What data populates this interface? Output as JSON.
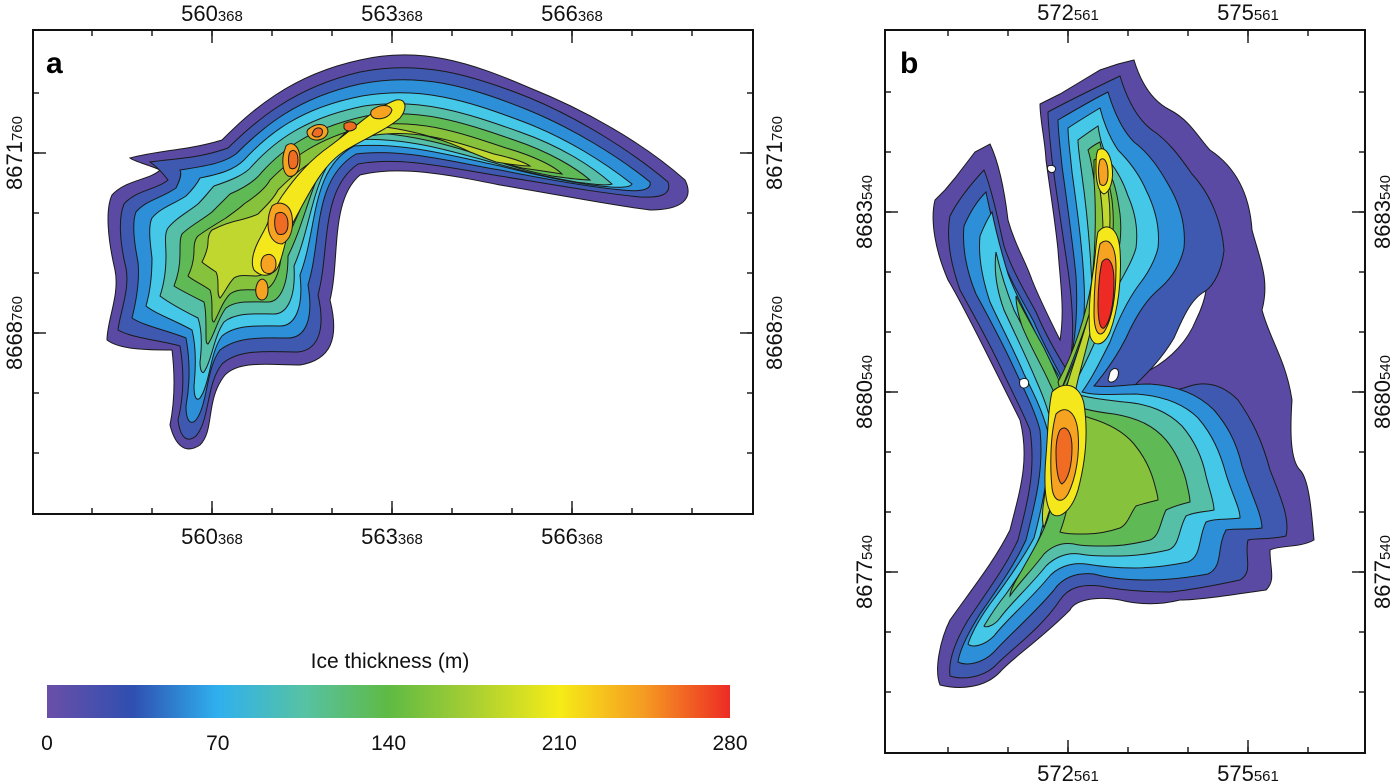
{
  "chart_data": [
    {
      "type": "heatmap",
      "panel_label": "a",
      "x_ticks": [
        {
          "main": "560",
          "sub": "368"
        },
        {
          "main": "563",
          "sub": "368"
        },
        {
          "main": "566",
          "sub": "368"
        }
      ],
      "y_ticks": [
        {
          "main": "8671",
          "sub": "760"
        },
        {
          "main": "8668",
          "sub": "760"
        }
      ],
      "description_levels": [
        {
          "level": 0,
          "color": "#5b4aa3"
        },
        {
          "level": 20,
          "color": "#3f58b0"
        },
        {
          "level": 45,
          "color": "#2d8fd8"
        },
        {
          "level": 70,
          "color": "#45c7e8"
        },
        {
          "level": 95,
          "color": "#56bfa8"
        },
        {
          "level": 120,
          "color": "#5fba55"
        },
        {
          "level": 150,
          "color": "#86c23c"
        },
        {
          "level": 180,
          "color": "#bfd72e"
        },
        {
          "level": 210,
          "color": "#f4e81c"
        },
        {
          "level": 240,
          "color": "#f6a321"
        },
        {
          "level": 260,
          "color": "#f06c22"
        }
      ]
    },
    {
      "type": "heatmap",
      "panel_label": "b",
      "x_ticks": [
        {
          "main": "572",
          "sub": "561"
        },
        {
          "main": "575",
          "sub": "561"
        }
      ],
      "y_ticks": [
        {
          "main": "8683",
          "sub": "540"
        },
        {
          "main": "8680",
          "sub": "540"
        },
        {
          "main": "8677",
          "sub": "540"
        }
      ]
    }
  ],
  "colorbar": {
    "title": "Ice thickness (m)",
    "range": [
      0,
      280
    ],
    "ticks": [
      "0",
      "70",
      "140",
      "210",
      "280"
    ],
    "stops": [
      {
        "value": 0,
        "color": "#6a4fa8"
      },
      {
        "value": 35,
        "color": "#2f4fb0"
      },
      {
        "value": 70,
        "color": "#2fb0ee"
      },
      {
        "value": 105,
        "color": "#56c2a5"
      },
      {
        "value": 140,
        "color": "#5fba44"
      },
      {
        "value": 175,
        "color": "#a9cf32"
      },
      {
        "value": 210,
        "color": "#f6ec17"
      },
      {
        "value": 245,
        "color": "#f59a22"
      },
      {
        "value": 280,
        "color": "#ed2b24"
      }
    ]
  }
}
